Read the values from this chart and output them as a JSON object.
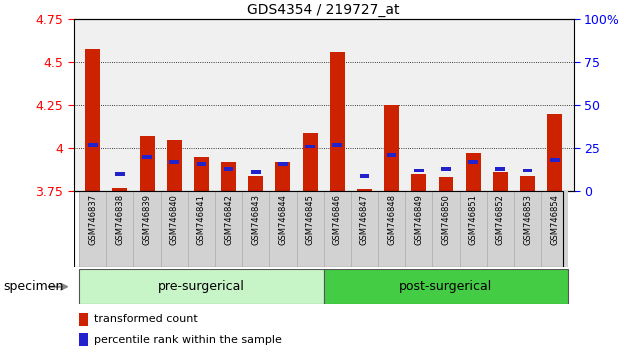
{
  "title": "GDS4354 / 219727_at",
  "samples": [
    "GSM746837",
    "GSM746838",
    "GSM746839",
    "GSM746840",
    "GSM746841",
    "GSM746842",
    "GSM746843",
    "GSM746844",
    "GSM746845",
    "GSM746846",
    "GSM746847",
    "GSM746848",
    "GSM746849",
    "GSM746850",
    "GSM746851",
    "GSM746852",
    "GSM746853",
    "GSM746854"
  ],
  "red_values": [
    4.58,
    3.77,
    4.07,
    4.05,
    3.95,
    3.92,
    3.84,
    3.92,
    4.09,
    4.56,
    3.76,
    4.25,
    3.85,
    3.83,
    3.97,
    3.86,
    3.84,
    4.2
  ],
  "blue_values": [
    4.02,
    3.85,
    3.95,
    3.92,
    3.91,
    3.88,
    3.86,
    3.91,
    4.01,
    4.02,
    3.84,
    3.96,
    3.87,
    3.88,
    3.92,
    3.88,
    3.87,
    3.93
  ],
  "ymin": 3.75,
  "ymax": 4.75,
  "yticks_left": [
    3.75,
    4.0,
    4.25,
    4.5,
    4.75
  ],
  "ytick_labels_left": [
    "3.75",
    "4",
    "4.25",
    "4.5",
    "4.75"
  ],
  "right_ytick_pcts": [
    0,
    25,
    50,
    75,
    100
  ],
  "right_ytick_labels": [
    "0",
    "25",
    "50",
    "75",
    "100%"
  ],
  "group_label_pre": "pre-surgerical",
  "group_label_post": "post-surgerical",
  "n_pre": 9,
  "bar_color": "#cc2200",
  "dot_color": "#2222cc",
  "bar_width": 0.55,
  "plot_bg": "#f0f0f0",
  "xtick_bg": "#d0d0d0",
  "pre_color": "#c8f5c8",
  "post_color": "#44cc44",
  "specimen_label": "specimen",
  "legend1": "transformed count",
  "legend2": "percentile rank within the sample",
  "grid_lines": [
    4.0,
    4.25,
    4.5
  ]
}
